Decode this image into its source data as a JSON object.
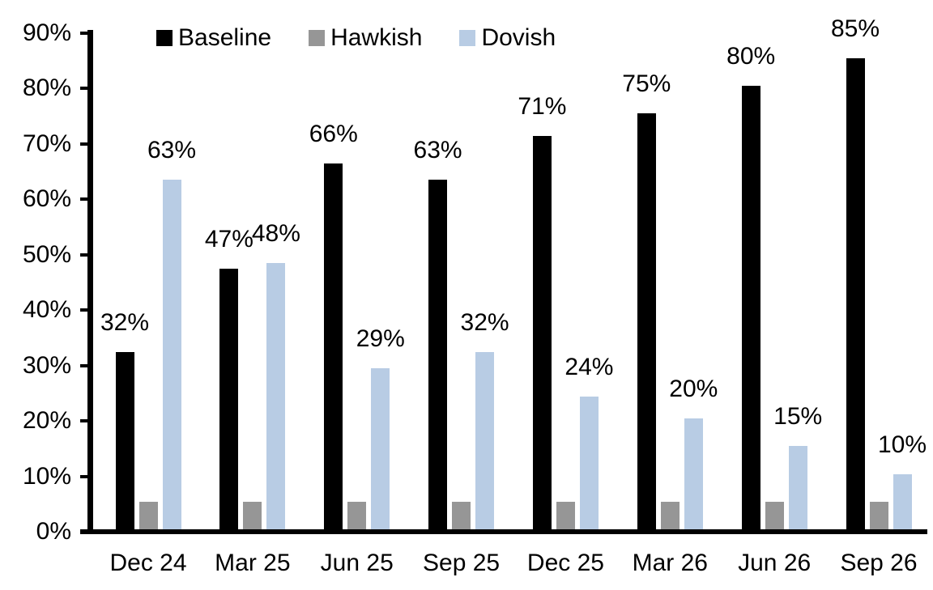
{
  "chart_data": {
    "type": "bar",
    "title": "",
    "xlabel": "",
    "ylabel": "",
    "categories": [
      "Dec 24",
      "Mar 25",
      "Jun 25",
      "Sep 25",
      "Dec 25",
      "Mar 26",
      "Jun 26",
      "Sep 26"
    ],
    "series": [
      {
        "name": "Baseline",
        "color": "#000000",
        "values": [
          32,
          47,
          66,
          63,
          71,
          75,
          80,
          85
        ],
        "labels": [
          "32%",
          "47%",
          "66%",
          "63%",
          "71%",
          "75%",
          "80%",
          "85%"
        ],
        "show_labels": true
      },
      {
        "name": "Hawkish",
        "color": "#969696",
        "values": [
          5,
          5,
          5,
          5,
          5,
          5,
          5,
          5
        ],
        "labels": [],
        "show_labels": false
      },
      {
        "name": "Dovish",
        "color": "#b8cce4",
        "values": [
          63,
          48,
          29,
          32,
          24,
          20,
          15,
          10
        ],
        "labels": [
          "63%",
          "48%",
          "29%",
          "32%",
          "24%",
          "20%",
          "15%",
          "10%"
        ],
        "show_labels": true
      }
    ],
    "y_axis": {
      "min": 0,
      "max": 90,
      "tick_step": 10,
      "tick_labels": [
        "0%",
        "10%",
        "20%",
        "30%",
        "40%",
        "50%",
        "60%",
        "70%",
        "80%",
        "90%"
      ]
    },
    "ylim": [
      0,
      90
    ],
    "grid": false,
    "legend": {
      "position": "top",
      "entries": [
        "Baseline",
        "Hawkish",
        "Dovish"
      ]
    },
    "background_color": "#ffffff",
    "axis_color": "#000000"
  }
}
